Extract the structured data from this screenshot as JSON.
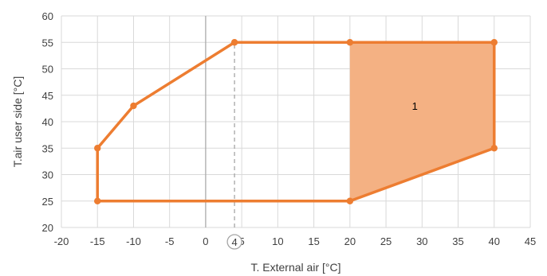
{
  "chart_data": {
    "type": "line",
    "xlabel": "T. External air  [°C]",
    "ylabel": "T.air user side  [°C]",
    "xlim": [
      -20,
      45
    ],
    "ylim": [
      20,
      60
    ],
    "x_ticks": [
      -20,
      -15,
      -10,
      -5,
      0,
      5,
      10,
      15,
      20,
      25,
      30,
      35,
      40,
      45
    ],
    "y_ticks": [
      20,
      25,
      30,
      35,
      40,
      45,
      50,
      55,
      60
    ],
    "grid": true,
    "series": [
      {
        "color": "#ed7d31",
        "closed": true,
        "points": [
          [
            -15,
            25
          ],
          [
            -15,
            35
          ],
          [
            -10,
            43
          ],
          [
            4,
            55
          ],
          [
            20,
            55
          ],
          [
            40,
            55
          ],
          [
            40,
            35
          ],
          [
            20,
            25
          ],
          [
            -15,
            25
          ]
        ]
      }
    ],
    "shaded_region": {
      "color": "#f4b183",
      "label": "1",
      "label_position": [
        29,
        43
      ],
      "points": [
        [
          20,
          25
        ],
        [
          20,
          55
        ],
        [
          40,
          55
        ],
        [
          40,
          35
        ]
      ]
    },
    "reference_line": {
      "x": 4,
      "style": "dashed",
      "from_y": 20,
      "to_y": 55,
      "circled_label": "4"
    }
  }
}
